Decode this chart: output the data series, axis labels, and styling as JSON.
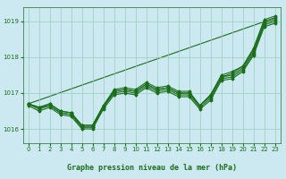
{
  "xlabel": "Graphe pression niveau de la mer (hPa)",
  "xlim": [
    -0.5,
    23.5
  ],
  "ylim": [
    1015.6,
    1019.4
  ],
  "yticks": [
    1016,
    1017,
    1018,
    1019
  ],
  "xticks": [
    0,
    1,
    2,
    3,
    4,
    5,
    6,
    7,
    8,
    9,
    10,
    11,
    12,
    13,
    14,
    15,
    16,
    17,
    18,
    19,
    20,
    21,
    22,
    23
  ],
  "bg_color": "#cce8f0",
  "grid_color": "#99ccbb",
  "line_color": "#1a6e1a",
  "straight_line": [
    [
      0,
      1016.7
    ],
    [
      23,
      1019.1
    ]
  ],
  "series": [
    [
      1016.7,
      1016.6,
      1016.7,
      1016.5,
      1016.45,
      1016.1,
      1016.1,
      1016.65,
      1017.05,
      1017.1,
      1017.05,
      1017.25,
      1017.1,
      1017.15,
      1017.0,
      1017.0,
      1016.65,
      1016.95,
      1017.45,
      1017.55,
      1017.75,
      1018.2,
      1019.0,
      1019.1
    ],
    [
      1016.7,
      1016.6,
      1016.7,
      1016.5,
      1016.45,
      1016.1,
      1016.1,
      1016.65,
      1017.1,
      1017.15,
      1017.1,
      1017.3,
      1017.15,
      1017.2,
      1017.05,
      1017.05,
      1016.65,
      1016.95,
      1017.5,
      1017.6,
      1017.75,
      1018.25,
      1019.05,
      1019.15
    ],
    [
      1016.7,
      1016.6,
      1016.65,
      1016.45,
      1016.4,
      1016.05,
      1016.05,
      1016.6,
      1017.05,
      1017.1,
      1017.05,
      1017.25,
      1017.1,
      1017.15,
      1017.0,
      1017.0,
      1016.65,
      1016.9,
      1017.45,
      1017.5,
      1017.7,
      1018.15,
      1018.95,
      1019.05
    ],
    [
      1016.7,
      1016.55,
      1016.65,
      1016.45,
      1016.4,
      1016.05,
      1016.05,
      1016.6,
      1017.0,
      1017.05,
      1017.0,
      1017.2,
      1017.05,
      1017.1,
      1016.95,
      1016.95,
      1016.6,
      1016.85,
      1017.4,
      1017.45,
      1017.65,
      1018.1,
      1018.9,
      1019.0
    ],
    [
      1016.65,
      1016.5,
      1016.6,
      1016.4,
      1016.35,
      1016.0,
      1016.0,
      1016.55,
      1016.95,
      1017.0,
      1016.95,
      1017.15,
      1017.0,
      1017.05,
      1016.9,
      1016.9,
      1016.55,
      1016.8,
      1017.35,
      1017.4,
      1017.6,
      1018.05,
      1018.85,
      1018.95
    ]
  ]
}
